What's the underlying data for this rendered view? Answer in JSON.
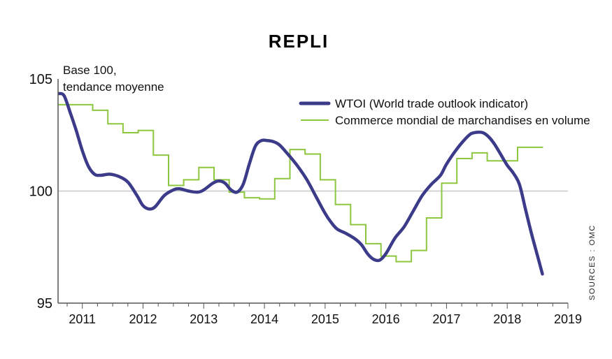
{
  "chart_data": {
    "type": "line",
    "title": "REPLI",
    "note_lines": [
      "Base 100,",
      "tendance moyenne"
    ],
    "source": "SOURCES : OMC",
    "ylim": [
      95,
      105
    ],
    "yticks": [
      "95",
      "100",
      "105"
    ],
    "xlim": [
      2010.6,
      2019.0
    ],
    "xtick_labels": [
      "2011",
      "2012",
      "2013",
      "2014",
      "2015",
      "2016",
      "2017",
      "2018",
      "2019"
    ],
    "xtick_positions": [
      2011,
      2012,
      2013,
      2014,
      2015,
      2016,
      2017,
      2018,
      2019
    ],
    "reference_line": 100,
    "legend_position": "top-right",
    "series": [
      {
        "name": "WTOI (World trade outlook indicator)",
        "color": "#3b3b8a",
        "style": "smooth",
        "points": [
          [
            2010.62,
            104.35
          ],
          [
            2010.7,
            104.25
          ],
          [
            2010.8,
            103.5
          ],
          [
            2010.9,
            102.7
          ],
          [
            2011.0,
            101.8
          ],
          [
            2011.1,
            101.1
          ],
          [
            2011.2,
            100.75
          ],
          [
            2011.3,
            100.7
          ],
          [
            2011.45,
            100.75
          ],
          [
            2011.6,
            100.65
          ],
          [
            2011.75,
            100.4
          ],
          [
            2011.9,
            99.8
          ],
          [
            2012.0,
            99.35
          ],
          [
            2012.1,
            99.2
          ],
          [
            2012.2,
            99.3
          ],
          [
            2012.35,
            99.8
          ],
          [
            2012.5,
            100.05
          ],
          [
            2012.6,
            100.1
          ],
          [
            2012.75,
            100.0
          ],
          [
            2012.9,
            99.95
          ],
          [
            2013.0,
            100.05
          ],
          [
            2013.15,
            100.35
          ],
          [
            2013.25,
            100.45
          ],
          [
            2013.35,
            100.35
          ],
          [
            2013.45,
            100.05
          ],
          [
            2013.55,
            99.95
          ],
          [
            2013.65,
            100.3
          ],
          [
            2013.75,
            101.2
          ],
          [
            2013.85,
            102.0
          ],
          [
            2013.95,
            102.25
          ],
          [
            2014.05,
            102.25
          ],
          [
            2014.15,
            102.2
          ],
          [
            2014.25,
            102.05
          ],
          [
            2014.4,
            101.6
          ],
          [
            2014.55,
            101.1
          ],
          [
            2014.7,
            100.5
          ],
          [
            2014.85,
            99.75
          ],
          [
            2015.0,
            99.0
          ],
          [
            2015.1,
            98.6
          ],
          [
            2015.2,
            98.3
          ],
          [
            2015.35,
            98.1
          ],
          [
            2015.5,
            97.85
          ],
          [
            2015.6,
            97.6
          ],
          [
            2015.7,
            97.2
          ],
          [
            2015.8,
            96.95
          ],
          [
            2015.9,
            96.92
          ],
          [
            2016.0,
            97.2
          ],
          [
            2016.15,
            97.9
          ],
          [
            2016.3,
            98.4
          ],
          [
            2016.45,
            99.1
          ],
          [
            2016.6,
            99.8
          ],
          [
            2016.75,
            100.3
          ],
          [
            2016.9,
            100.7
          ],
          [
            2017.0,
            101.2
          ],
          [
            2017.15,
            101.8
          ],
          [
            2017.3,
            102.3
          ],
          [
            2017.4,
            102.55
          ],
          [
            2017.5,
            102.62
          ],
          [
            2017.6,
            102.6
          ],
          [
            2017.7,
            102.4
          ],
          [
            2017.8,
            102.05
          ],
          [
            2017.9,
            101.6
          ],
          [
            2018.0,
            101.15
          ],
          [
            2018.1,
            100.8
          ],
          [
            2018.2,
            100.3
          ],
          [
            2018.3,
            99.2
          ],
          [
            2018.4,
            98.1
          ],
          [
            2018.5,
            97.1
          ],
          [
            2018.58,
            96.3
          ]
        ]
      },
      {
        "name": "Commerce mondial de marchandises en volume",
        "color": "#8dc63f",
        "style": "step",
        "points": [
          [
            2010.6,
            103.85
          ],
          [
            2011.17,
            103.6
          ],
          [
            2011.42,
            103.0
          ],
          [
            2011.67,
            102.6
          ],
          [
            2011.92,
            102.7
          ],
          [
            2012.17,
            101.6
          ],
          [
            2012.42,
            100.25
          ],
          [
            2012.67,
            100.5
          ],
          [
            2012.92,
            101.05
          ],
          [
            2013.17,
            100.5
          ],
          [
            2013.42,
            99.95
          ],
          [
            2013.67,
            99.7
          ],
          [
            2013.92,
            99.65
          ],
          [
            2014.17,
            100.55
          ],
          [
            2014.42,
            101.85
          ],
          [
            2014.67,
            101.65
          ],
          [
            2014.92,
            100.5
          ],
          [
            2015.17,
            99.4
          ],
          [
            2015.42,
            98.5
          ],
          [
            2015.67,
            97.65
          ],
          [
            2015.92,
            97.1
          ],
          [
            2016.17,
            96.85
          ],
          [
            2016.42,
            97.35
          ],
          [
            2016.67,
            98.8
          ],
          [
            2016.92,
            100.35
          ],
          [
            2017.17,
            101.45
          ],
          [
            2017.42,
            101.7
          ],
          [
            2017.67,
            101.35
          ],
          [
            2017.92,
            101.35
          ],
          [
            2018.17,
            101.95
          ],
          [
            2018.42,
            101.95
          ]
        ]
      }
    ]
  },
  "colors": {
    "axis": "#555555",
    "reference": "#c8c8c8",
    "background": "#ffffff"
  }
}
